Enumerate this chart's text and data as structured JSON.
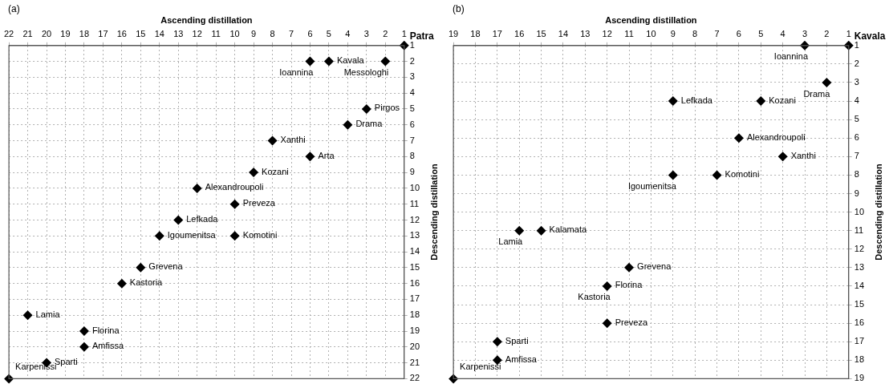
{
  "chart_data": [
    {
      "type": "scatter",
      "title": "(a)",
      "xlabel": "Ascending distillation",
      "ylabel": "Descending distillation",
      "xlim": [
        22,
        1
      ],
      "ylim": [
        22,
        1
      ],
      "xticks": [
        22,
        21,
        20,
        19,
        18,
        17,
        16,
        15,
        14,
        13,
        12,
        11,
        10,
        9,
        8,
        7,
        6,
        5,
        4,
        3,
        2,
        1
      ],
      "yticks": [
        1,
        2,
        3,
        4,
        5,
        6,
        7,
        8,
        9,
        10,
        11,
        12,
        13,
        14,
        15,
        16,
        17,
        18,
        19,
        20,
        21,
        22
      ],
      "grid": true,
      "marker": "diamond",
      "series": [
        {
          "color": "#000000",
          "x": [
            1,
            5,
            6,
            2,
            3,
            4,
            8,
            6,
            9,
            12,
            10,
            13,
            14,
            10,
            15,
            16,
            21,
            18,
            18,
            20,
            22
          ],
          "values": [
            1,
            2,
            2,
            2,
            5,
            6,
            7,
            8,
            9,
            10,
            11,
            12,
            13,
            13,
            15,
            16,
            18,
            19,
            20,
            21,
            22
          ]
        }
      ],
      "annotations": [
        "Patra",
        {
          "text": "Kavala",
          "x": 5,
          "y": 2
        },
        {
          "text": "Ioannina",
          "x": 6,
          "y": 2
        },
        {
          "text": "Messologhi",
          "x": 2,
          "y": 2
        },
        {
          "text": "Pirgos",
          "x": 3,
          "y": 5
        },
        {
          "text": "Drama",
          "x": 4,
          "y": 6
        },
        {
          "text": "Xanthi",
          "x": 8,
          "y": 7
        },
        {
          "text": "Arta",
          "x": 6,
          "y": 8
        },
        {
          "text": "Kozani",
          "x": 9,
          "y": 9
        },
        {
          "text": "Alexandroupoli",
          "x": 12,
          "y": 10
        },
        {
          "text": "Preveza",
          "x": 10,
          "y": 11
        },
        {
          "text": "Lefkada",
          "x": 13,
          "y": 12
        },
        {
          "text": "Igoumenitsa",
          "x": 14,
          "y": 13
        },
        {
          "text": "Komotini",
          "x": 10,
          "y": 13
        },
        {
          "text": "Grevena",
          "x": 15,
          "y": 15
        },
        {
          "text": "Kastoria",
          "x": 16,
          "y": 16
        },
        {
          "text": "Lamia",
          "x": 21,
          "y": 18
        },
        {
          "text": "Florina",
          "x": 18,
          "y": 19
        },
        {
          "text": "Amfissa",
          "x": 18,
          "y": 20
        },
        {
          "text": "Sparti",
          "x": 20,
          "y": 21
        },
        {
          "text": "Karpenissi",
          "x": 22,
          "y": 22
        }
      ]
    },
    {
      "type": "scatter",
      "title": "(b)",
      "xlabel": "Ascending distillation",
      "ylabel": "Descending distillation",
      "xlim": [
        19,
        1
      ],
      "ylim": [
        19,
        1
      ],
      "xticks": [
        19,
        18,
        17,
        16,
        15,
        14,
        13,
        12,
        11,
        10,
        9,
        8,
        7,
        6,
        5,
        4,
        3,
        2,
        1
      ],
      "yticks": [
        1,
        2,
        3,
        4,
        5,
        6,
        7,
        8,
        9,
        10,
        11,
        12,
        13,
        14,
        15,
        16,
        17,
        18,
        19
      ],
      "grid": true,
      "marker": "diamond",
      "series": [
        {
          "color": "#000000",
          "x": [
            1,
            3,
            2,
            9,
            5,
            6,
            4,
            9,
            7,
            16,
            15,
            11,
            12,
            12,
            17,
            17,
            19
          ],
          "values": [
            1,
            1,
            3,
            4,
            4,
            6,
            7,
            8,
            8,
            11,
            11,
            13,
            14,
            16,
            17,
            18,
            19
          ]
        }
      ],
      "annotations": [
        "Kavala",
        {
          "text": "Ioannina",
          "x": 3,
          "y": 1
        },
        {
          "text": "Drama",
          "x": 2,
          "y": 3
        },
        {
          "text": "Lefkada",
          "x": 9,
          "y": 4
        },
        {
          "text": "Kozani",
          "x": 5,
          "y": 4
        },
        {
          "text": "Alexandroupoli",
          "x": 6,
          "y": 6
        },
        {
          "text": "Xanthi",
          "x": 4,
          "y": 7
        },
        {
          "text": "Igoumenitsa",
          "x": 9,
          "y": 8
        },
        {
          "text": "Komotini",
          "x": 7,
          "y": 8
        },
        {
          "text": "Lamia",
          "x": 16,
          "y": 11
        },
        {
          "text": "Kalamata",
          "x": 15,
          "y": 11
        },
        {
          "text": "Grevena",
          "x": 11,
          "y": 13
        },
        {
          "text": "Florina",
          "x": 12,
          "y": 14
        },
        {
          "text": "Kastoria",
          "x": 12,
          "y": 14
        },
        {
          "text": "Preveza",
          "x": 12,
          "y": 16
        },
        {
          "text": "Sparti",
          "x": 17,
          "y": 17
        },
        {
          "text": "Amfissa",
          "x": 17,
          "y": 18
        },
        {
          "text": "Karpenissi",
          "x": 19,
          "y": 19
        }
      ]
    }
  ]
}
